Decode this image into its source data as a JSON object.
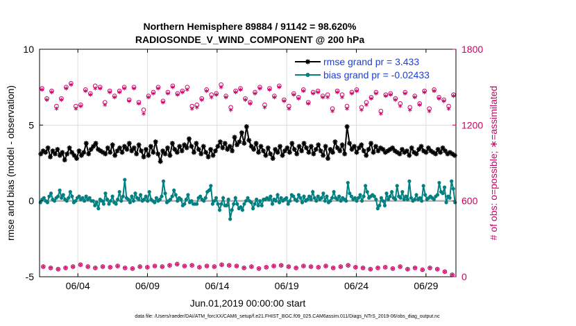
{
  "colors": {
    "rmse": "#000000",
    "bias": "#008080",
    "obs": "#cc0066",
    "legend_text": "#1a3fd6",
    "grid": "#dddddd",
    "zero": "#b0b0b0"
  },
  "chart_data": {
    "type": "line",
    "title": "Northern Hemisphere 89884 / 91142 = 98.620%",
    "subtitle": "RADIOSONDE_V_WIND_COMPONENT @ 200 hPa",
    "xlabel": "Jun.01,2019 00:00:00 start",
    "ylabel": "rmse and bias (model - observation)",
    "ylabel_right": "# of obs: o=possible; ∗=assimilated",
    "footer": "data file: /Users/raeder/DAI/ATM_forcXX/CAM6_setup/f.e21.FHIST_BGC.f09_025.CAM6assim.011/Diags_NTrS_2019-06/obs_diag_output.nc",
    "xlim": [
      0.75,
      30.65
    ],
    "ylim": [
      -5,
      10
    ],
    "ylim_right": [
      0,
      1800
    ],
    "yticks": [
      -5,
      0,
      5,
      10
    ],
    "yticks_right": [
      0,
      600,
      1200,
      1800
    ],
    "xticks": [
      {
        "x": 3.5,
        "label": "06/04"
      },
      {
        "x": 8.5,
        "label": "06/09"
      },
      {
        "x": 13.5,
        "label": "06/14"
      },
      {
        "x": 18.5,
        "label": "06/19"
      },
      {
        "x": 23.5,
        "label": "06/24"
      },
      {
        "x": 28.5,
        "label": "06/29"
      }
    ],
    "legend": [
      {
        "label": "rmse grand pr = 3.433",
        "series": "rmse"
      },
      {
        "label": "bias grand pr = -0.02433",
        "series": "bias"
      }
    ],
    "legend_position": "top-right",
    "step": 0.25,
    "x_start": 0.75,
    "series": [
      {
        "name": "rmse",
        "axis": "left",
        "marker": "star",
        "values": [
          3.1,
          3.3,
          3.2,
          3.5,
          2.9,
          3.3,
          3.1,
          3.4,
          3.0,
          3.2,
          2.7,
          3.1,
          3.5,
          3.2,
          3.0,
          2.8,
          3.3,
          3.0,
          3.2,
          3.8,
          3.1,
          3.4,
          3.6,
          3.8,
          3.4,
          3.3,
          3.2,
          3.1,
          3.5,
          3.2,
          3.7,
          3.0,
          3.3,
          3.5,
          3.2,
          3.6,
          3.4,
          3.8,
          3.3,
          3.5,
          3.1,
          3.7,
          3.3,
          2.9,
          3.4,
          3.0,
          3.6,
          3.2,
          3.9,
          3.1,
          2.6,
          3.3,
          3.1,
          3.5,
          3.0,
          3.8,
          3.4,
          3.2,
          3.6,
          3.3,
          3.7,
          3.5,
          4.1,
          3.6,
          3.2,
          3.8,
          3.4,
          3.1,
          3.6,
          3.2,
          2.9,
          3.4,
          3.0,
          3.3,
          3.6,
          3.9,
          3.5,
          3.8,
          3.4,
          3.6,
          3.3,
          4.2,
          3.7,
          3.9,
          4.5,
          3.8,
          4.9,
          4.0,
          3.6,
          3.4,
          3.8,
          3.2,
          3.6,
          3.3,
          3.0,
          3.5,
          3.1,
          2.8,
          3.4,
          3.2,
          3.6,
          3.0,
          3.3,
          3.5,
          3.2,
          3.8,
          3.4,
          3.1,
          3.6,
          3.3,
          3.8,
          3.5,
          3.2,
          3.6,
          3.1,
          3.4,
          3.7,
          3.3,
          3.0,
          3.6,
          2.8,
          3.4,
          3.2,
          3.9,
          3.5,
          3.3,
          3.7,
          3.1,
          4.9,
          3.8,
          3.4,
          3.6,
          3.2,
          3.5,
          3.7,
          3.3,
          3.0,
          3.4,
          3.8,
          3.2,
          3.6,
          3.3,
          3.5,
          3.4,
          3.2,
          3.3,
          3.4,
          3.5,
          3.3,
          3.2,
          3.1,
          3.4,
          3.2,
          3.3,
          3.0,
          3.5,
          3.2,
          3.1,
          3.4,
          3.6,
          3.3,
          3.2,
          3.5,
          3.3,
          3.2,
          3.1,
          3.4,
          3.2,
          3.5,
          3.3,
          3.1,
          3.2,
          3.1,
          3.0
        ]
      },
      {
        "name": "bias",
        "axis": "left",
        "marker": "dot",
        "values": [
          -0.1,
          0.1,
          0.2,
          0.0,
          -0.1,
          0.3,
          0.5,
          0.1,
          0.0,
          0.2,
          0.3,
          0.7,
          0.2,
          0.4,
          0.1,
          0.0,
          0.2,
          0.6,
          0.3,
          -0.1,
          0.0,
          0.2,
          0.3,
          0.1,
          0.2,
          0.0,
          0.3,
          0.1,
          0.2,
          0.0,
          0.0,
          -0.3,
          -0.1,
          -0.5,
          0.1,
          0.0,
          -0.2,
          0.5,
          0.1,
          -0.2,
          0.0,
          0.3,
          -0.1,
          -0.2,
          0.1,
          0.6,
          0.0,
          0.3,
          1.4,
          0.2,
          0.1,
          -0.1,
          0.3,
          0.0,
          0.5,
          0.2,
          0.1,
          0.4,
          0.0,
          0.1,
          0.3,
          0.0,
          0.6,
          0.1,
          0.0,
          -0.1,
          0.2,
          0.0,
          0.1,
          0.3,
          1.3,
          0.5,
          -0.1,
          0.0,
          0.1,
          0.3,
          0.7,
          0.4,
          0.0,
          0.2,
          0.1,
          -0.3,
          -0.2,
          0.1,
          0.4,
          -0.1,
          0.0,
          -0.2,
          -0.2,
          -0.2,
          0.2,
          0.3,
          0.1,
          0.0,
          0.2,
          0.6,
          0.7,
          1.0,
          -0.2,
          0.0,
          0.2,
          -0.2,
          -0.6,
          -0.2,
          0.2,
          -0.3,
          -0.3,
          0.1,
          -1.2,
          -0.6,
          -0.2,
          0.2,
          -0.2,
          -0.5,
          -0.4,
          -0.6,
          -0.2,
          0.0,
          0.2,
          0.0,
          -0.1,
          -0.5,
          -0.2,
          0.1,
          -0.3,
          0.0,
          -0.3,
          0.1,
          0.1,
          0.2,
          0.1,
          0.3,
          -0.2,
          0.1,
          0.0,
          0.4,
          -0.1,
          0.2,
          0.0,
          0.1,
          0.2,
          -0.2,
          0.0,
          0.4,
          0.3,
          0.1,
          0.0,
          0.4,
          0.2,
          -0.1,
          0.3,
          0.0,
          0.1,
          0.3,
          0.1,
          0.6,
          0.2,
          0.0,
          0.3,
          0.1,
          0.2,
          0.5,
          0.0,
          0.3,
          -0.1,
          0.0,
          0.2,
          0.6,
          0.2,
          0.1,
          0.3,
          0.0,
          0.2,
          0.1,
          0.0,
          1.2,
          0.5,
          0.3,
          0.1,
          0.2,
          0.0,
          0.2,
          0.4,
          0.0,
          0.3,
          1.0,
          0.6,
          0.2,
          0.3,
          0.4,
          0.3,
          0.1,
          -0.5,
          -0.3,
          0.2,
          0.0,
          -0.3,
          0.5,
          0.1,
          0.3,
          0.6,
          0.2,
          0.1,
          1.0,
          0.3,
          0.2,
          0.6,
          0.1,
          0.3,
          0.1,
          1.3,
          0.2,
          0.0,
          0.1,
          0.4,
          0.1,
          0.2,
          0.0,
          1.0,
          0.4,
          0.1,
          0.2,
          0.3,
          0.2,
          0.1,
          0.3,
          0.4,
          1.2,
          0.6,
          0.5,
          0.9,
          -0.1,
          0.3,
          0.2,
          1.3,
          0.8,
          -0.1
        ]
      },
      {
        "name": "obs_possible",
        "axis": "right",
        "marker": "circle",
        "values": [
          1490,
          1410,
          1470,
          1350,
          1410,
          1500,
          1530,
          1350,
          1360,
          1480,
          1450,
          1510,
          1500,
          1380,
          1470,
          1430,
          1470,
          1500,
          1400,
          1500,
          1380,
          1320,
          1430,
          1460,
          1500,
          1390,
          1460,
          1510,
          1450,
          1470,
          1500,
          1350,
          1360,
          1410,
          1480,
          1440,
          1450,
          1520,
          1430,
          1340,
          1470,
          1490,
          1410,
          1380,
          1460,
          1500,
          1360,
          1490,
          1430,
          1510,
          1400,
          1350,
          1450,
          1420,
          1480,
          1380,
          1460,
          1470,
          1430,
          1440,
          1330,
          1470,
          1440,
          1350,
          1460,
          1480,
          1340,
          1380,
          1420,
          1460,
          1310,
          1440,
          1450,
          1410,
          1370,
          1460,
          1340,
          1430,
          1370,
          1470,
          1330,
          1480,
          1420,
          1400,
          1350,
          1440
        ]
      },
      {
        "name": "obs_assimilated",
        "axis": "right",
        "marker": "asterisk",
        "values": [
          1480,
          1400,
          1460,
          1330,
          1400,
          1490,
          1520,
          1330,
          1350,
          1470,
          1440,
          1490,
          1490,
          1360,
          1460,
          1420,
          1460,
          1490,
          1390,
          1490,
          1370,
          1290,
          1420,
          1450,
          1490,
          1380,
          1450,
          1500,
          1440,
          1460,
          1480,
          1330,
          1340,
          1400,
          1470,
          1420,
          1440,
          1500,
          1420,
          1320,
          1460,
          1480,
          1400,
          1370,
          1450,
          1490,
          1340,
          1480,
          1420,
          1500,
          1390,
          1330,
          1440,
          1410,
          1470,
          1370,
          1450,
          1460,
          1420,
          1420,
          1310,
          1460,
          1420,
          1330,
          1450,
          1470,
          1320,
          1360,
          1410,
          1450,
          1290,
          1430,
          1440,
          1400,
          1350,
          1450,
          1320,
          1420,
          1360,
          1460,
          1310,
          1470,
          1410,
          1390,
          1330,
          1430
        ]
      },
      {
        "name": "obs_low_possible",
        "axis": "right",
        "marker": "circle",
        "values": [
          80,
          70,
          60,
          70,
          80,
          95,
          80,
          70,
          80,
          75,
          85,
          70,
          65,
          80,
          75,
          85,
          80,
          90,
          100,
          85,
          90,
          75,
          85,
          80,
          95,
          90,
          85,
          70,
          80,
          65,
          75,
          85,
          90,
          80,
          70,
          85,
          80,
          75,
          85,
          70,
          80,
          90,
          75,
          70,
          60,
          70,
          75,
          65,
          80,
          60,
          70,
          55,
          70,
          60,
          40,
          15
        ]
      },
      {
        "name": "obs_low_assimilated",
        "axis": "right",
        "marker": "asterisk",
        "values": [
          80,
          70,
          60,
          70,
          80,
          95,
          80,
          70,
          80,
          75,
          85,
          70,
          65,
          80,
          75,
          85,
          80,
          90,
          100,
          85,
          90,
          75,
          85,
          80,
          95,
          90,
          85,
          70,
          80,
          65,
          75,
          85,
          90,
          80,
          70,
          85,
          80,
          75,
          85,
          70,
          80,
          90,
          75,
          70,
          60,
          70,
          75,
          65,
          80,
          60,
          70,
          55,
          70,
          60,
          40,
          15
        ]
      }
    ]
  }
}
